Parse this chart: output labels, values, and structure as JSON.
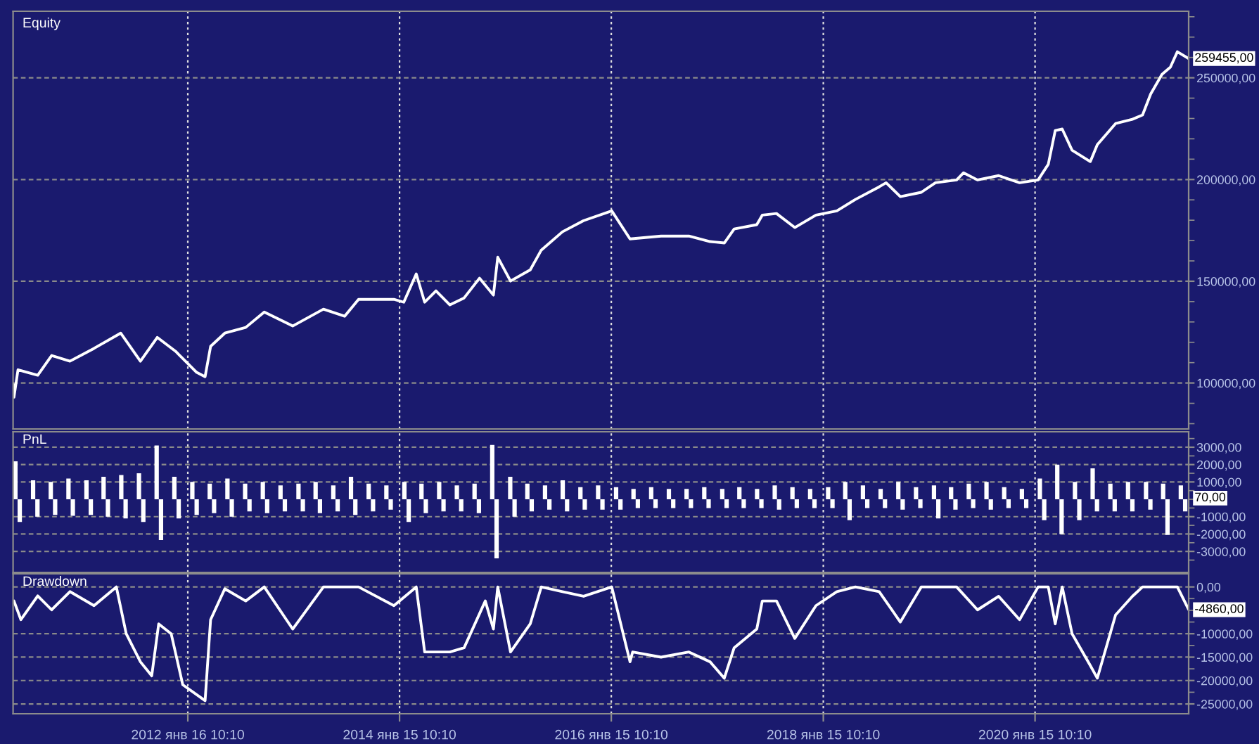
{
  "chart_data": [
    {
      "type": "line",
      "title": "Equity",
      "tick_labels": "y",
      "grid": true,
      "xlim": [
        "2010-05-24",
        "2021-06-28"
      ],
      "xticks": [
        {
          "value": "2012-01-16T10:10",
          "label": null
        },
        {
          "value": "2014-01-15T10:10",
          "label": null
        },
        {
          "value": "2016-01-15T10:10",
          "label": null
        },
        {
          "value": "2018-01-15T10:10",
          "label": null
        },
        {
          "value": "2020-01-15T10:10",
          "label": null
        }
      ],
      "ylim": [
        77400,
        282700
      ],
      "yticks": [
        {
          "value": 100000,
          "label": "100000,00"
        },
        {
          "value": 150000,
          "label": "150000,00"
        },
        {
          "value": 200000,
          "label": "200000,00"
        },
        {
          "value": 250000,
          "label": "250000,00"
        },
        {
          "value": 80000,
          "label": null
        },
        {
          "value": 90000,
          "label": null
        },
        {
          "value": 110000,
          "label": null
        },
        {
          "value": 120000,
          "label": null
        },
        {
          "value": 130000,
          "label": null
        },
        {
          "value": 140000,
          "label": null
        },
        {
          "value": 160000,
          "label": null
        },
        {
          "value": 170000,
          "label": null
        },
        {
          "value": 180000,
          "label": null
        },
        {
          "value": 190000,
          "label": null
        },
        {
          "value": 210000,
          "label": null
        },
        {
          "value": 220000,
          "label": null
        },
        {
          "value": 230000,
          "label": null
        },
        {
          "value": 240000,
          "label": null
        },
        {
          "value": 260000,
          "label": null
        },
        {
          "value": 270000,
          "label": null
        },
        {
          "value": 280000,
          "label": null
        }
      ],
      "annotations": [
        {
          "text": "259455,00",
          "x": "2021-06-28",
          "y": 259455
        }
      ],
      "series": [
        {
          "color": "#ffffff",
          "x": [
            "2010-05-24",
            "2010-05-27",
            "2010-06-10",
            "2010-08-17",
            "2010-10-04",
            "2010-12-06",
            "2011-02-27",
            "2011-05-30",
            "2011-08-06",
            "2011-10-03",
            "2011-12-05",
            "2012-02-16",
            "2012-03-16",
            "2012-04-04",
            "2012-05-23",
            "2012-08-03",
            "2012-10-06",
            "2013-01-12",
            "2013-04-28",
            "2013-07-10",
            "2013-08-27",
            "2013-12-27",
            "2014-01-30",
            "2014-03-14",
            "2014-04-12",
            "2014-05-21",
            "2014-07-08",
            "2014-08-26",
            "2014-10-18",
            "2014-12-05",
            "2014-12-20",
            "2015-02-02",
            "2015-04-11",
            "2015-05-19",
            "2015-07-31",
            "2015-10-12",
            "2016-01-17",
            "2016-03-20",
            "2016-07-05",
            "2016-10-09",
            "2016-12-21",
            "2017-02-08",
            "2017-03-14",
            "2017-05-31",
            "2017-06-19",
            "2017-08-07",
            "2017-10-09",
            "2017-12-21",
            "2018-03-03",
            "2018-05-06",
            "2018-07-27",
            "2018-08-20",
            "2018-10-08",
            "2018-12-19",
            "2019-02-06",
            "2019-04-20",
            "2019-05-14",
            "2019-07-01",
            "2019-09-12",
            "2019-11-23",
            "2020-01-26",
            "2020-03-01",
            "2020-03-25",
            "2020-04-18",
            "2020-05-22",
            "2020-07-24",
            "2020-08-17",
            "2020-10-19",
            "2020-12-16",
            "2021-01-20",
            "2021-02-17",
            "2021-03-28",
            "2021-04-26",
            "2021-05-20",
            "2021-06-28"
          ],
          "values": [
            99600,
            93000,
            106500,
            103800,
            113500,
            110700,
            117000,
            124500,
            110700,
            122400,
            115600,
            105200,
            103100,
            118000,
            124500,
            127300,
            134900,
            128000,
            136300,
            132800,
            141100,
            141100,
            139700,
            153600,
            139700,
            145300,
            138400,
            141800,
            151500,
            143200,
            161800,
            150100,
            155600,
            165300,
            174300,
            179800,
            184600,
            170800,
            172200,
            172200,
            169500,
            168800,
            175700,
            177800,
            182500,
            183300,
            176400,
            182500,
            184600,
            190200,
            196400,
            198400,
            191600,
            193700,
            198400,
            199800,
            203300,
            199800,
            201900,
            198400,
            199800,
            207500,
            224100,
            224800,
            214400,
            208800,
            217100,
            227500,
            229600,
            231700,
            242000,
            251700,
            255200,
            262800,
            259455
          ]
        }
      ]
    },
    {
      "type": "bar",
      "title": "PnL",
      "tick_labels": "y",
      "grid": true,
      "xlim": [
        "2010-05-24",
        "2021-06-28"
      ],
      "xticks": [
        {
          "value": "2012-01-16T10:10",
          "label": null
        },
        {
          "value": "2014-01-15T10:10",
          "label": null
        },
        {
          "value": "2016-01-15T10:10",
          "label": null
        },
        {
          "value": "2018-01-15T10:10",
          "label": null
        },
        {
          "value": "2020-01-15T10:10",
          "label": null
        }
      ],
      "ylim": [
        -4210,
        3890
      ],
      "yticks": [
        {
          "value": -3000,
          "label": "-3000,00"
        },
        {
          "value": -2000,
          "label": "-2000,00"
        },
        {
          "value": -1000,
          "label": "-1000,00"
        },
        {
          "value": 1000,
          "label": "1000,00"
        },
        {
          "value": 2000,
          "label": "2000,00"
        },
        {
          "value": 3000,
          "label": "3000,00"
        },
        {
          "value": -3500,
          "label": null
        },
        {
          "value": -2500,
          "label": null
        },
        {
          "value": -1500,
          "label": null
        },
        {
          "value": -500,
          "label": null
        },
        {
          "value": 0,
          "label": null
        },
        {
          "value": 500,
          "label": null
        },
        {
          "value": 1500,
          "label": null
        },
        {
          "value": 2500,
          "label": null
        },
        {
          "value": 3500,
          "label": null
        }
      ],
      "annotations": [
        {
          "text": "70,00",
          "x": "2021-06-28",
          "y": 70
        }
      ],
      "series": [
        {
          "color": "#ffffff",
          "x": [
            "2010-06-01",
            "2010-06-16",
            "2010-08-01",
            "2010-08-16",
            "2010-10-01",
            "2010-10-16",
            "2010-12-01",
            "2010-12-16",
            "2011-02-01",
            "2011-02-16",
            "2011-04-01",
            "2011-04-16",
            "2011-06-01",
            "2011-06-16",
            "2011-08-01",
            "2011-08-16",
            "2011-10-01",
            "2011-10-16",
            "2011-12-01",
            "2011-12-16",
            "2012-02-01",
            "2012-02-16",
            "2012-04-01",
            "2012-04-16",
            "2012-06-01",
            "2012-06-16",
            "2012-08-01",
            "2012-08-16",
            "2012-10-01",
            "2012-10-16",
            "2012-12-01",
            "2012-12-16",
            "2013-02-01",
            "2013-02-16",
            "2013-04-01",
            "2013-04-16",
            "2013-06-01",
            "2013-06-16",
            "2013-08-01",
            "2013-08-16",
            "2013-10-01",
            "2013-10-16",
            "2013-12-01",
            "2013-12-16",
            "2014-02-01",
            "2014-02-16",
            "2014-04-01",
            "2014-04-16",
            "2014-06-01",
            "2014-06-16",
            "2014-08-01",
            "2014-08-16",
            "2014-10-01",
            "2014-10-16",
            "2014-12-01",
            "2014-12-16",
            "2015-02-01",
            "2015-02-16",
            "2015-04-01",
            "2015-04-16",
            "2015-06-01",
            "2015-06-16",
            "2015-08-01",
            "2015-08-16",
            "2015-10-01",
            "2015-10-16",
            "2015-12-01",
            "2015-12-16",
            "2016-02-01",
            "2016-02-16",
            "2016-04-01",
            "2016-04-16",
            "2016-06-01",
            "2016-06-16",
            "2016-08-01",
            "2016-08-16",
            "2016-10-01",
            "2016-10-16",
            "2016-12-01",
            "2016-12-16",
            "2017-02-01",
            "2017-02-16",
            "2017-04-01",
            "2017-04-16",
            "2017-06-01",
            "2017-06-16",
            "2017-08-01",
            "2017-08-16",
            "2017-10-01",
            "2017-10-16",
            "2017-12-01",
            "2017-12-16",
            "2018-02-01",
            "2018-02-16",
            "2018-04-01",
            "2018-04-16",
            "2018-06-01",
            "2018-06-16",
            "2018-08-01",
            "2018-08-16",
            "2018-10-01",
            "2018-10-16",
            "2018-12-01",
            "2018-12-16",
            "2019-02-01",
            "2019-02-16",
            "2019-04-01",
            "2019-04-16",
            "2019-06-01",
            "2019-06-16",
            "2019-08-01",
            "2019-08-16",
            "2019-10-01",
            "2019-10-16",
            "2019-12-01",
            "2019-12-16",
            "2020-02-01",
            "2020-02-16",
            "2020-04-01",
            "2020-04-16",
            "2020-06-01",
            "2020-06-16",
            "2020-08-01",
            "2020-08-16",
            "2020-10-01",
            "2020-10-16",
            "2020-12-01",
            "2020-12-16",
            "2021-02-01",
            "2021-02-16",
            "2021-04-01",
            "2021-04-16",
            "2021-06-01",
            "2021-06-16"
          ],
          "values": [
            2190,
            -1300,
            1100,
            -1000,
            1000,
            -900,
            1200,
            -950,
            1100,
            -900,
            1300,
            -1000,
            1400,
            -1100,
            1500,
            -1300,
            3100,
            -2350,
            1300,
            -1100,
            1000,
            -900,
            900,
            -800,
            1200,
            -1000,
            900,
            -700,
            1000,
            -800,
            800,
            -700,
            900,
            -700,
            1000,
            -800,
            800,
            -700,
            1300,
            -900,
            900,
            -700,
            800,
            -600,
            1000,
            -1300,
            900,
            -800,
            1000,
            -700,
            800,
            -700,
            900,
            -800,
            3130,
            -3400,
            1300,
            -1000,
            900,
            -700,
            800,
            -600,
            1100,
            -700,
            700,
            -600,
            800,
            -600,
            700,
            -600,
            600,
            -500,
            700,
            -500,
            600,
            -500,
            600,
            -500,
            700,
            -500,
            600,
            -500,
            700,
            -500,
            600,
            -500,
            800,
            -600,
            700,
            -500,
            600,
            -500,
            700,
            -500,
            1000,
            -1200,
            800,
            -500,
            600,
            -500,
            1000,
            -600,
            700,
            -500,
            800,
            -1100,
            700,
            -600,
            900,
            -500,
            1000,
            -600,
            700,
            -500,
            600,
            -500,
            1200,
            -1200,
            2000,
            -2000,
            1000,
            -1200,
            1780,
            -700,
            900,
            -700,
            1000,
            -700,
            1000,
            -600,
            900,
            -2050,
            800,
            -700
          ]
        }
      ]
    },
    {
      "type": "line",
      "title": "Drawdown",
      "grid": true,
      "xlim": [
        "2010-05-24",
        "2021-06-28"
      ],
      "xticks": [
        {
          "value": "2012-01-16T10:10",
          "label": "2012 янв 16 10:10"
        },
        {
          "value": "2014-01-15T10:10",
          "label": "2014 янв 15 10:10"
        },
        {
          "value": "2016-01-15T10:10",
          "label": "2016 янв 15 10:10"
        },
        {
          "value": "2018-01-15T10:10",
          "label": "2018 янв 15 10:10"
        },
        {
          "value": "2020-01-15T10:10",
          "label": "2020 янв 15 10:10"
        }
      ],
      "ylim": [
        -27100,
        2800
      ],
      "yticks": [
        {
          "value": -25000,
          "label": "-25000,00"
        },
        {
          "value": -20000,
          "label": "-20000,00"
        },
        {
          "value": -15000,
          "label": "-15000,00"
        },
        {
          "value": -10000,
          "label": "-10000,00"
        },
        {
          "value": -5000,
          "label": null
        },
        {
          "value": 0,
          "label": "0,00"
        },
        {
          "value": -22500,
          "label": null
        },
        {
          "value": -17500,
          "label": null
        },
        {
          "value": -12500,
          "label": null
        },
        {
          "value": -7500,
          "label": null
        },
        {
          "value": -2500,
          "label": null
        }
      ],
      "annotations": [
        {
          "text": "-4860,00",
          "x": "2021-06-28",
          "y": -4860
        }
      ],
      "series": [
        {
          "color": "#ffffff",
          "x": [
            "2010-05-27",
            "2010-06-20",
            "2010-08-17",
            "2010-10-04",
            "2010-12-06",
            "2011-02-27",
            "2011-05-15",
            "2011-06-18",
            "2011-08-06",
            "2011-09-14",
            "2011-10-08",
            "2011-11-20",
            "2011-12-30",
            "2012-03-16",
            "2012-04-04",
            "2012-05-23",
            "2012-08-03",
            "2012-10-06",
            "2013-01-12",
            "2013-04-28",
            "2013-08-27",
            "2013-12-27",
            "2014-03-14",
            "2014-04-12",
            "2014-07-08",
            "2014-08-26",
            "2014-11-07",
            "2014-12-05",
            "2014-12-20",
            "2015-02-02",
            "2015-04-11",
            "2015-05-19",
            "2015-07-31",
            "2015-10-12",
            "2016-01-17",
            "2016-03-20",
            "2016-03-29",
            "2016-07-05",
            "2016-10-09",
            "2016-12-21",
            "2017-02-08",
            "2017-03-14",
            "2017-05-31",
            "2017-06-19",
            "2017-08-07",
            "2017-10-09",
            "2017-12-21",
            "2018-03-03",
            "2018-05-06",
            "2018-07-27",
            "2018-10-08",
            "2018-12-19",
            "2019-04-20",
            "2019-07-01",
            "2019-09-12",
            "2019-11-23",
            "2020-01-26",
            "2020-03-01",
            "2020-03-25",
            "2020-04-18",
            "2020-05-22",
            "2020-07-24",
            "2020-08-17",
            "2020-10-19",
            "2020-12-16",
            "2021-01-20",
            "2021-03-28",
            "2021-05-20",
            "2021-06-28"
          ],
          "values": [
            -3000,
            -7000,
            -1900,
            -4900,
            -1000,
            -4000,
            0,
            -10000,
            -16000,
            -19000,
            -7900,
            -10000,
            -20900,
            -24300,
            -7000,
            -400,
            -3000,
            0,
            -9000,
            0,
            0,
            -4000,
            0,
            -13900,
            -13900,
            -13000,
            -3000,
            -9000,
            0,
            -13900,
            -7900,
            0,
            -1000,
            -2000,
            0,
            -16000,
            -13900,
            -15000,
            -13900,
            -16000,
            -19500,
            -13000,
            -9000,
            -3000,
            -3000,
            -11000,
            -4000,
            -1000,
            0,
            -1000,
            -7500,
            0,
            0,
            -4900,
            -2000,
            -7000,
            0,
            0,
            -7900,
            0,
            -10000,
            -16800,
            -19500,
            -6000,
            -2000,
            0,
            0,
            0,
            -4860
          ]
        }
      ]
    }
  ]
}
